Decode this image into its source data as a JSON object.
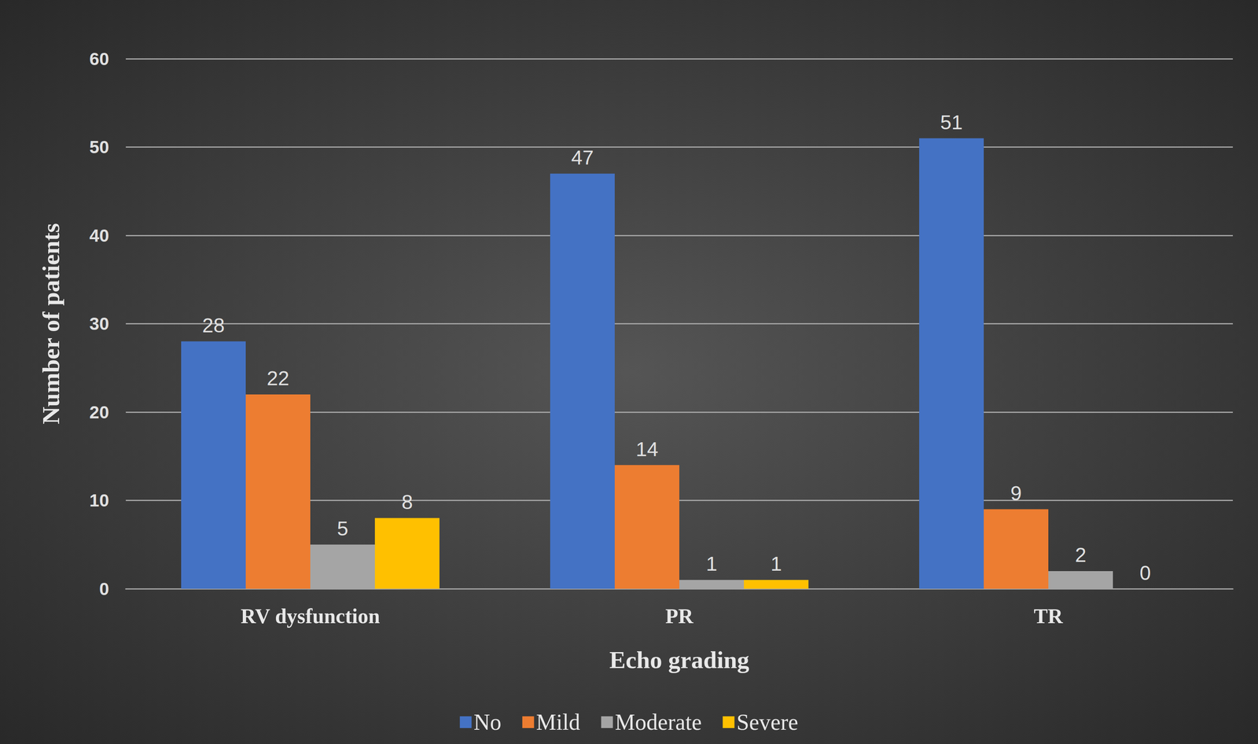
{
  "chart_data": {
    "type": "bar",
    "x_label": "Echo grading",
    "y_label": "Number of patients",
    "categories": [
      "RV dysfunction",
      "PR",
      "TR"
    ],
    "series": [
      {
        "name": "No",
        "color": "#4472c4",
        "values": [
          28,
          47,
          51
        ]
      },
      {
        "name": "Mild",
        "color": "#ed7d31",
        "values": [
          22,
          14,
          9
        ]
      },
      {
        "name": "Moderate",
        "color": "#a5a5a5",
        "values": [
          5,
          1,
          2
        ]
      },
      {
        "name": "Severe",
        "color": "#ffc000",
        "values": [
          8,
          1,
          0
        ]
      }
    ],
    "ylim": [
      0,
      60
    ],
    "yticks": [
      0,
      10,
      20,
      30,
      40,
      50,
      60
    ],
    "grid": true,
    "legend": "bottom",
    "data_labels": true
  }
}
